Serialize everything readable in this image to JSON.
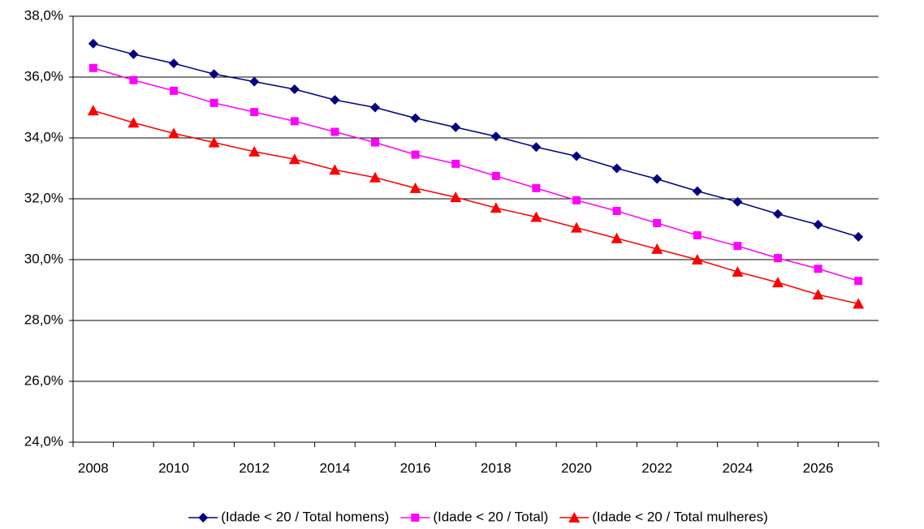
{
  "chart_data": {
    "type": "line",
    "categories": [
      "2008",
      null,
      "2010",
      null,
      "2012",
      null,
      "2014",
      null,
      "2016",
      null,
      "2018",
      null,
      "2020",
      null,
      "2022",
      null,
      "2024",
      null,
      "2026",
      null
    ],
    "series": [
      {
        "name": "(Idade < 20 / Total homens)",
        "color": "#000080",
        "marker": "diamond",
        "values": [
          37.1,
          36.75,
          36.45,
          36.1,
          35.85,
          35.6,
          35.25,
          35.0,
          34.65,
          34.35,
          34.05,
          33.7,
          33.4,
          33.0,
          32.65,
          32.25,
          31.9,
          31.5,
          31.15,
          30.75
        ]
      },
      {
        "name": "(Idade < 20 / Total)",
        "color": "#ff00ff",
        "marker": "square",
        "values": [
          36.3,
          35.9,
          35.55,
          35.15,
          34.85,
          34.55,
          34.2,
          33.85,
          33.45,
          33.15,
          32.75,
          32.35,
          31.95,
          31.6,
          31.2,
          30.8,
          30.45,
          30.05,
          29.7,
          29.3
        ]
      },
      {
        "name": "(Idade < 20 / Total mulheres)",
        "color": "#ff0000",
        "marker": "triangle",
        "values": [
          34.9,
          34.5,
          34.15,
          33.85,
          33.55,
          33.3,
          32.95,
          32.7,
          32.35,
          32.05,
          31.7,
          31.4,
          31.05,
          30.7,
          30.35,
          30.0,
          29.6,
          29.25,
          28.85,
          28.55
        ]
      }
    ],
    "ylim": [
      24,
      38
    ],
    "yticks": [
      {
        "value": 24,
        "label": "24,0%"
      },
      {
        "value": 26,
        "label": "26,0%"
      },
      {
        "value": 28,
        "label": "28,0%"
      },
      {
        "value": 30,
        "label": "30,0%"
      },
      {
        "value": 32,
        "label": "32,0%"
      },
      {
        "value": 34,
        "label": "34,0%"
      },
      {
        "value": 36,
        "label": "36,0%"
      },
      {
        "value": 38,
        "label": "38,0%"
      }
    ],
    "grid": true,
    "legend": "bottom"
  }
}
